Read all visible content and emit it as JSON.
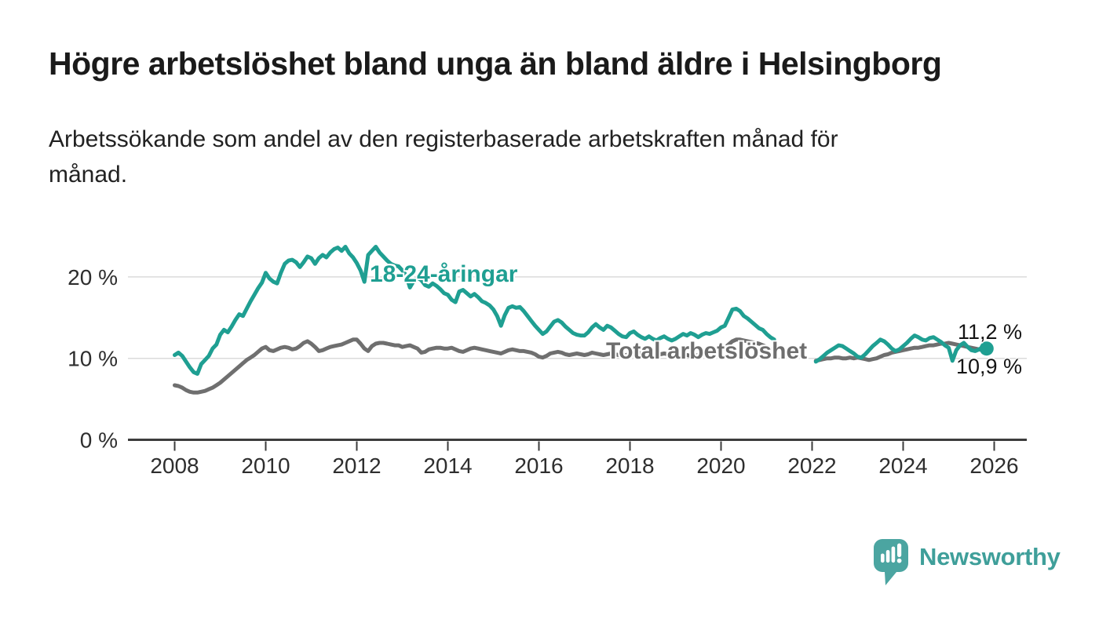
{
  "header": {
    "title": "Högre arbetslöshet bland unga än bland äldre i Helsingborg",
    "subtitle": "Arbetssökande som andel av den registerbaserade arbetskraften månad för\nmånad."
  },
  "chart": {
    "series_label_young": "18-24-åringar",
    "series_label_total": "Total arbetslöshet",
    "end_label_young": "11,2 %",
    "end_label_total": "10,9 %"
  },
  "chart_data": {
    "type": "line",
    "title": "Högre arbetslöshet bland unga än bland äldre i Helsingborg",
    "unit": "%",
    "frequency": "monthly",
    "x_start": "2008-01",
    "x_end": "2025-11",
    "data_gap": "2021-04 to 2022-01",
    "ylim": [
      0,
      25
    ],
    "grid": true,
    "x_axis": {
      "ticks": [
        {
          "value": 2008,
          "label": "2008"
        },
        {
          "value": 2010,
          "label": "2010"
        },
        {
          "value": 2012,
          "label": "2012"
        },
        {
          "value": 2014,
          "label": "2014"
        },
        {
          "value": 2016,
          "label": "2016"
        },
        {
          "value": 2018,
          "label": "2018"
        },
        {
          "value": 2020,
          "label": "2020"
        },
        {
          "value": 2022,
          "label": "2022"
        },
        {
          "value": 2024,
          "label": "2024"
        },
        {
          "value": 2026,
          "label": "2026"
        }
      ]
    },
    "y_axis": {
      "ticks": [
        {
          "value": 0,
          "label": "0 %"
        },
        {
          "value": 10,
          "label": "10 %"
        },
        {
          "value": 20,
          "label": "20 %"
        }
      ]
    },
    "series": [
      {
        "id": "total",
        "name": "Total arbetslöshet",
        "color": "#6F6F6F",
        "end_value_label": "10,9 %",
        "end_dot": false,
        "values": [
          6.7,
          6.6,
          6.4,
          6.1,
          5.9,
          5.8,
          5.8,
          5.9,
          6.0,
          6.2,
          6.4,
          6.7,
          7.0,
          7.4,
          7.8,
          8.2,
          8.6,
          9.0,
          9.4,
          9.8,
          10.1,
          10.4,
          10.8,
          11.2,
          11.4,
          11.0,
          10.9,
          11.1,
          11.3,
          11.4,
          11.3,
          11.1,
          11.2,
          11.5,
          11.9,
          12.1,
          11.8,
          11.4,
          10.9,
          11.0,
          11.2,
          11.4,
          11.5,
          11.6,
          11.7,
          11.9,
          12.1,
          12.3,
          12.3,
          11.8,
          11.2,
          10.9,
          11.5,
          11.8,
          11.9,
          11.9,
          11.8,
          11.7,
          11.6,
          11.6,
          11.4,
          11.5,
          11.6,
          11.4,
          11.2,
          10.7,
          10.8,
          11.1,
          11.2,
          11.3,
          11.3,
          11.2,
          11.2,
          11.3,
          11.1,
          10.9,
          10.8,
          11.0,
          11.2,
          11.3,
          11.2,
          11.1,
          11.0,
          10.9,
          10.8,
          10.7,
          10.6,
          10.8,
          11.0,
          11.1,
          11.0,
          10.9,
          10.9,
          10.8,
          10.7,
          10.5,
          10.2,
          10.1,
          10.3,
          10.6,
          10.7,
          10.8,
          10.7,
          10.5,
          10.4,
          10.5,
          10.6,
          10.5,
          10.4,
          10.5,
          10.7,
          10.6,
          10.5,
          10.4,
          10.5,
          10.6,
          10.5,
          10.4,
          10.3,
          10.4,
          10.5,
          10.6,
          10.7,
          10.6,
          10.4,
          10.2,
          10.1,
          10.3,
          10.5,
          10.6,
          10.5,
          10.4,
          10.3,
          10.4,
          10.5,
          10.4,
          10.3,
          10.3,
          10.4,
          10.5,
          10.6,
          10.7,
          10.8,
          10.9,
          11.1,
          11.3,
          11.7,
          12.1,
          12.3,
          12.3,
          12.2,
          12.1,
          12.0,
          11.9,
          11.8,
          11.6,
          11.4,
          11.2,
          11.0,
          null,
          null,
          null,
          null,
          null,
          null,
          null,
          null,
          null,
          null,
          9.7,
          9.8,
          9.9,
          10.0,
          10.0,
          10.1,
          10.1,
          10.0,
          10.0,
          10.1,
          10.0,
          10.1,
          10.0,
          9.9,
          9.8,
          9.9,
          10.0,
          10.2,
          10.4,
          10.5,
          10.7,
          10.8,
          10.9,
          11.0,
          11.1,
          11.2,
          11.3,
          11.3,
          11.4,
          11.5,
          11.6,
          11.6,
          11.7,
          11.8,
          11.8,
          11.9,
          11.8,
          11.7,
          11.6,
          11.5,
          11.4,
          11.3,
          11.2,
          11.1,
          11.0,
          10.9
        ]
      },
      {
        "id": "young",
        "name": "18-24-åringar",
        "color": "#1F9F92",
        "end_value_label": "11,2 %",
        "end_dot": true,
        "values": [
          10.4,
          10.7,
          10.3,
          9.6,
          8.9,
          8.3,
          8.1,
          9.3,
          9.8,
          10.3,
          11.2,
          11.7,
          12.9,
          13.5,
          13.2,
          13.9,
          14.7,
          15.4,
          15.2,
          16.1,
          17.0,
          17.8,
          18.6,
          19.3,
          20.5,
          19.8,
          19.4,
          19.2,
          20.5,
          21.6,
          22.0,
          22.1,
          21.8,
          21.2,
          21.8,
          22.5,
          22.3,
          21.6,
          22.3,
          22.7,
          22.4,
          23.0,
          23.4,
          23.6,
          23.2,
          23.7,
          22.9,
          22.4,
          21.7,
          20.8,
          19.4,
          22.7,
          23.2,
          23.7,
          23.0,
          22.5,
          22.0,
          21.6,
          21.4,
          21.3,
          20.8,
          20.2,
          18.7,
          19.5,
          19.9,
          19.6,
          19.0,
          18.8,
          19.2,
          18.9,
          18.5,
          18.0,
          17.8,
          17.2,
          16.9,
          18.2,
          18.4,
          18.0,
          17.6,
          17.9,
          17.5,
          17.0,
          16.8,
          16.5,
          16.0,
          15.2,
          14.0,
          15.3,
          16.2,
          16.4,
          16.2,
          16.3,
          15.8,
          15.2,
          14.6,
          14.0,
          13.5,
          13.0,
          13.3,
          13.9,
          14.5,
          14.7,
          14.4,
          13.9,
          13.5,
          13.1,
          12.9,
          12.8,
          12.8,
          13.2,
          13.8,
          14.2,
          13.8,
          13.5,
          14.0,
          13.8,
          13.4,
          13.0,
          12.7,
          12.6,
          13.1,
          13.3,
          12.9,
          12.6,
          12.4,
          12.7,
          12.4,
          12.2,
          12.5,
          12.7,
          12.4,
          12.2,
          12.4,
          12.7,
          13.0,
          12.8,
          13.1,
          12.9,
          12.6,
          12.9,
          13.1,
          13.0,
          13.2,
          13.4,
          13.8,
          14.0,
          15.0,
          16.0,
          16.1,
          15.8,
          15.2,
          14.9,
          14.5,
          14.1,
          13.7,
          13.5,
          13.0,
          12.6,
          12.3,
          null,
          null,
          null,
          null,
          null,
          null,
          null,
          null,
          null,
          null,
          9.6,
          9.9,
          10.3,
          10.7,
          11.0,
          11.3,
          11.6,
          11.5,
          11.2,
          10.9,
          10.6,
          10.2,
          10.1,
          10.5,
          11.0,
          11.5,
          11.9,
          12.3,
          12.1,
          11.7,
          11.2,
          10.9,
          11.1,
          11.5,
          11.9,
          12.4,
          12.8,
          12.6,
          12.3,
          12.2,
          12.5,
          12.6,
          12.3,
          12.0,
          11.6,
          11.3,
          9.7,
          11.0,
          11.6,
          11.9,
          11.4,
          11.0,
          10.9,
          11.1,
          11.4,
          11.2
        ]
      }
    ],
    "legend_position": "inline-labels"
  },
  "branding": {
    "logo_text": "Newsworthy",
    "logo_color": "#4BA5A1",
    "logo_icon": "bar-chart-speech-bubble"
  },
  "colors": {
    "young_series": "#1F9F92",
    "total_series": "#6F6F6F",
    "gridline": "#DBDBDB",
    "axis": "#3C3C3C"
  }
}
